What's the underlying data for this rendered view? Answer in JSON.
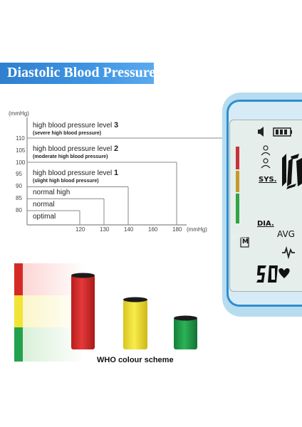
{
  "header": {
    "title": "Diastolic Blood Pressure"
  },
  "chart_data": {
    "type": "step",
    "ylabel": "(mmHg)",
    "xlabel": "(mmHg)",
    "yticks": [
      "110",
      "105",
      "100",
      "95",
      "90",
      "85",
      "80"
    ],
    "xticks": [
      "120",
      "130",
      "140",
      "160",
      "180"
    ],
    "levels": [
      {
        "label": "optimal",
        "sub": "",
        "num": "",
        "sys": 120,
        "dia": 80
      },
      {
        "label": "normal",
        "sub": "",
        "num": "",
        "sys": 130,
        "dia": 85
      },
      {
        "label": "normal high",
        "sub": "",
        "num": "",
        "sys": 140,
        "dia": 90
      },
      {
        "label": "high blood pressure level ",
        "sub": "(slight high blood pressure)",
        "num": "1",
        "sys": 160,
        "dia": 100
      },
      {
        "label": "high blood pressure level ",
        "sub": "(moderate high blood pressure)",
        "num": "2",
        "sys": 180,
        "dia": 110
      },
      {
        "label": "high blood pressure level ",
        "sub": "(severe high blood pressure)",
        "num": "3",
        "sys": 180,
        "dia": 110
      }
    ],
    "legend": {
      "title": "WHO colour scheme",
      "colors": [
        "#d42a27",
        "#f2e337",
        "#23a24d"
      ]
    }
  },
  "device": {
    "who_label": "WHO",
    "sys_label": "SYS.",
    "dia_label": "DIA.",
    "avg_label": "AVG",
    "mem_label": "M",
    "pulse_value": "50",
    "bar_colors": [
      "#c8333a",
      "#c59a2b",
      "#32a347"
    ]
  }
}
